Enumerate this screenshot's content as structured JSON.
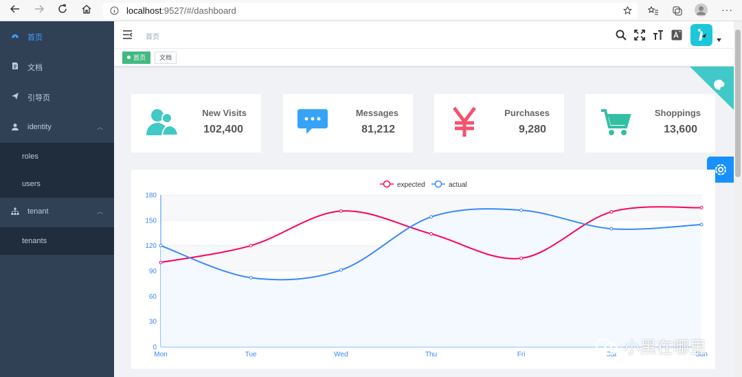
{
  "browser": {
    "url_host": "localhost",
    "url_path": ":9527/#/dashboard"
  },
  "sidebar": {
    "items": [
      {
        "label": "首页",
        "icon": "dashboard-icon",
        "active": true
      },
      {
        "label": "文档",
        "icon": "document-icon"
      },
      {
        "label": "引导页",
        "icon": "guide-icon"
      },
      {
        "label": "identity",
        "icon": "user-icon",
        "expanded": true,
        "children": [
          "roles",
          "users"
        ]
      },
      {
        "label": "tenant",
        "icon": "tree-icon",
        "expanded": true,
        "children": [
          "tenants"
        ]
      }
    ]
  },
  "navbar": {
    "breadcrumb": "首页"
  },
  "tags": [
    {
      "label": "首页",
      "active": true
    },
    {
      "label": "文档",
      "active": false
    }
  ],
  "cards": [
    {
      "title": "New Visits",
      "value": "102,400",
      "icon": "peoples-icon",
      "color": "#40c9c6"
    },
    {
      "title": "Messages",
      "value": "81,212",
      "icon": "message-icon",
      "color": "#36a3f7"
    },
    {
      "title": "Purchases",
      "value": "9,280",
      "icon": "money-icon",
      "color": "#f4516c"
    },
    {
      "title": "Shoppings",
      "value": "13,600",
      "icon": "shopping-icon",
      "color": "#34bfa3"
    }
  ],
  "chart_data": {
    "type": "line",
    "categories": [
      "Mon",
      "Tue",
      "Wed",
      "Thu",
      "Fri",
      "Sat",
      "Sun"
    ],
    "series": [
      {
        "name": "expected",
        "values": [
          100,
          120,
          161,
          134,
          105,
          160,
          165
        ],
        "color": "#ff005a"
      },
      {
        "name": "actual",
        "values": [
          120,
          82,
          91,
          154,
          162,
          140,
          145
        ],
        "color": "#3888fa"
      }
    ],
    "yticks": [
      0,
      30,
      60,
      90,
      120,
      150,
      180
    ],
    "ylim": [
      0,
      180
    ],
    "legend": "top-center"
  },
  "watermark": "小黑在哪里",
  "colors": {
    "sidebar_bg": "#304156",
    "accent": "#409eff",
    "tag_active": "#42b983"
  }
}
